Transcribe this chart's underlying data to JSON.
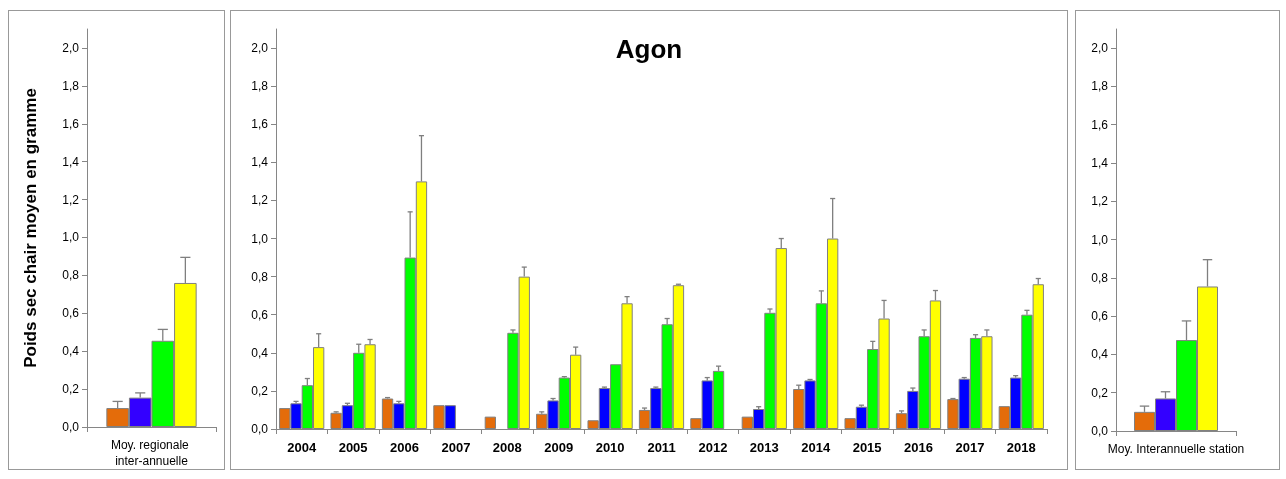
{
  "chart_data": [
    {
      "type": "bar",
      "ylabel": "Poids sec chair moyen en gramme",
      "categories": [
        "Moy. regionale inter-annuelle"
      ],
      "ylim": [
        0,
        2.1
      ],
      "yticks": [
        {
          "value": 0,
          "label": "0,0"
        },
        {
          "value": 0.2,
          "label": "0,2"
        },
        {
          "value": 0.4,
          "label": "0,4"
        },
        {
          "value": 0.6,
          "label": "0,6"
        },
        {
          "value": 0.8,
          "label": "0,8"
        },
        {
          "value": 1.0,
          "label": "1,0"
        },
        {
          "value": 1.2,
          "label": "1,2"
        },
        {
          "value": 1.4,
          "label": "1,4"
        },
        {
          "value": 1.6,
          "label": "1,6"
        },
        {
          "value": 1.8,
          "label": "1,8"
        },
        {
          "value": 2.0,
          "label": "2,0"
        }
      ],
      "series": [
        {
          "color": "#e46c0a",
          "values": [
            0.1
          ],
          "errors": [
            [
              0.1,
              0.135
            ]
          ]
        },
        {
          "color": "#3300ff",
          "values": [
            0.155
          ],
          "errors": [
            [
              0.155,
              0.18
            ]
          ]
        },
        {
          "color": "#00ff00",
          "values": [
            0.455
          ],
          "errors": [
            [
              0.455,
              0.515
            ]
          ]
        },
        {
          "color": "#ffff00",
          "values": [
            0.76
          ],
          "errors": [
            [
              0.76,
              0.895
            ]
          ]
        }
      ]
    },
    {
      "type": "bar",
      "title": "Agon",
      "categories": [
        "2004",
        "2005",
        "2006",
        "2007",
        "2008",
        "2009",
        "2010",
        "2011",
        "2012",
        "2013",
        "2014",
        "2015",
        "2016",
        "2017",
        "2018"
      ],
      "ylim": [
        0,
        2.1
      ],
      "yticks": [
        {
          "value": 0,
          "label": "0,0"
        },
        {
          "value": 0.2,
          "label": "0,2"
        },
        {
          "value": 0.4,
          "label": "0,4"
        },
        {
          "value": 0.6,
          "label": "0,6"
        },
        {
          "value": 0.8,
          "label": "0,8"
        },
        {
          "value": 1.0,
          "label": "1,0"
        },
        {
          "value": 1.2,
          "label": "1,2"
        },
        {
          "value": 1.4,
          "label": "1,4"
        },
        {
          "value": 1.6,
          "label": "1,6"
        },
        {
          "value": 1.8,
          "label": "1,8"
        },
        {
          "value": 2.0,
          "label": "2,0"
        }
      ],
      "series": [
        {
          "color": "#e46c0a",
          "values": [
            0.11,
            0.085,
            0.16,
            0.125,
            0.065,
            0.08,
            0.046,
            0.1,
            0.057,
            0.065,
            0.21,
            0.057,
            0.083,
            0.157,
            0.12
          ],
          "errors": [
            null,
            [
              0.085,
              0.09
            ],
            [
              0.16,
              0.165
            ],
            null,
            null,
            [
              0.08,
              0.09
            ],
            null,
            [
              0.1,
              0.11
            ],
            null,
            null,
            [
              0.21,
              0.23
            ],
            null,
            [
              0.083,
              0.095
            ],
            [
              0.157,
              0.16
            ],
            null
          ]
        },
        {
          "color": "#0000ff",
          "values": [
            0.135,
            0.125,
            0.135,
            0.125,
            null,
            0.15,
            0.215,
            0.215,
            0.255,
            0.105,
            0.255,
            0.117,
            0.2,
            0.264,
            0.27
          ],
          "errors": [
            [
              0.135,
              0.145
            ],
            [
              0.125,
              0.135
            ],
            [
              0.135,
              0.145
            ],
            null,
            null,
            [
              0.15,
              0.16
            ],
            [
              0.215,
              0.22
            ],
            [
              0.215,
              0.22
            ],
            [
              0.255,
              0.27
            ],
            [
              0.105,
              0.117
            ],
            [
              0.255,
              0.26
            ],
            [
              0.117,
              0.125
            ],
            [
              0.2,
              0.215
            ],
            [
              0.264,
              0.27
            ],
            [
              0.27,
              0.28
            ]
          ]
        },
        {
          "color": "#00ff00",
          "values": [
            0.23,
            0.4,
            0.9,
            null,
            0.505,
            0.27,
            0.34,
            0.55,
            0.305,
            0.61,
            0.66,
            0.42,
            0.487,
            0.478,
            0.6
          ],
          "errors": [
            [
              0.23,
              0.265
            ],
            [
              0.4,
              0.445
            ],
            [
              0.9,
              1.14
            ],
            null,
            [
              0.505,
              0.52
            ],
            [
              0.27,
              0.275
            ],
            null,
            [
              0.55,
              0.58
            ],
            [
              0.305,
              0.33
            ],
            [
              0.61,
              0.63
            ],
            [
              0.66,
              0.725
            ],
            [
              0.42,
              0.46
            ],
            [
              0.487,
              0.52
            ],
            [
              0.478,
              0.495
            ],
            [
              0.6,
              0.623
            ]
          ]
        },
        {
          "color": "#ffff00",
          "values": [
            0.43,
            0.445,
            1.3,
            null,
            0.8,
            0.39,
            0.66,
            0.755,
            null,
            0.95,
            1.0,
            0.58,
            0.675,
            0.487,
            0.76
          ],
          "errors": [
            [
              0.43,
              0.5
            ],
            [
              0.445,
              0.47
            ],
            [
              1.3,
              1.54
            ],
            null,
            [
              0.8,
              0.85
            ],
            [
              0.39,
              0.43
            ],
            [
              0.66,
              0.695
            ],
            [
              0.755,
              0.76
            ],
            null,
            [
              0.95,
              1.0
            ],
            [
              1.0,
              1.21
            ],
            [
              0.58,
              0.675
            ],
            [
              0.675,
              0.727
            ],
            [
              0.487,
              0.52
            ],
            [
              0.76,
              0.79
            ]
          ]
        }
      ]
    },
    {
      "type": "bar",
      "categories": [
        "Moy. Interannuelle station"
      ],
      "ylim": [
        0,
        2.1
      ],
      "yticks": [
        {
          "value": 0,
          "label": "0,0"
        },
        {
          "value": 0.2,
          "label": "0,2"
        },
        {
          "value": 0.4,
          "label": "0,4"
        },
        {
          "value": 0.6,
          "label": "0,6"
        },
        {
          "value": 0.8,
          "label": "0,8"
        },
        {
          "value": 1.0,
          "label": "1,0"
        },
        {
          "value": 1.2,
          "label": "1,2"
        },
        {
          "value": 1.4,
          "label": "1,4"
        },
        {
          "value": 1.6,
          "label": "1,6"
        },
        {
          "value": 1.8,
          "label": "1,8"
        },
        {
          "value": 2.0,
          "label": "2,0"
        }
      ],
      "series": [
        {
          "color": "#e46c0a",
          "values": [
            0.1
          ],
          "errors": [
            [
              0.1,
              0.13
            ]
          ]
        },
        {
          "color": "#3300ff",
          "values": [
            0.17
          ],
          "errors": [
            [
              0.17,
              0.205
            ]
          ]
        },
        {
          "color": "#00ff00",
          "values": [
            0.475
          ],
          "errors": [
            [
              0.475,
              0.575
            ]
          ]
        },
        {
          "color": "#ffff00",
          "values": [
            0.755
          ],
          "errors": [
            [
              0.755,
              0.895
            ]
          ]
        }
      ]
    }
  ]
}
